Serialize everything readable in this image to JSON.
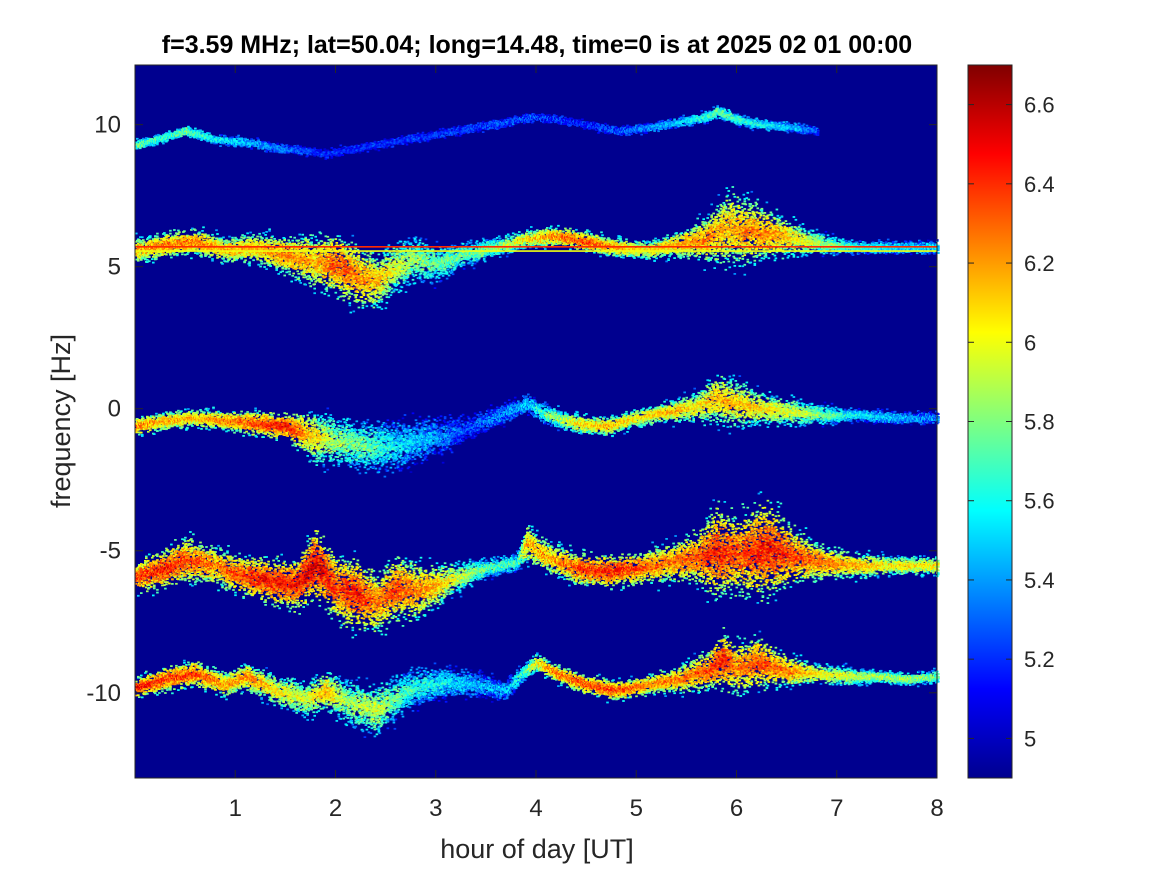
{
  "chart_data": {
    "type": "heatmap",
    "title": "f=3.59 MHz;  lat=50.04; long=14.48, time=0 is at 2025 02 01 00:00",
    "xlabel": "hour of day [UT]",
    "ylabel": "frequency [Hz]",
    "xlim": [
      0,
      8
    ],
    "ylim": [
      -13,
      12.1
    ],
    "xticks": [
      1,
      2,
      3,
      4,
      5,
      6,
      7,
      8
    ],
    "yticks": [
      10,
      5,
      0,
      -5,
      -10
    ],
    "colorbar": {
      "colormap": "jet",
      "clim": [
        4.9,
        6.7
      ],
      "ticks": [
        5,
        5.2,
        5.4,
        5.6,
        5.8,
        6,
        6.2,
        6.4,
        6.6
      ]
    },
    "background_color": "#00008f",
    "grid": false,
    "traces": [
      {
        "hours": [
          0,
          0.3,
          0.5,
          0.8,
          1.0,
          1.3,
          1.6,
          1.8,
          2.0,
          2.2,
          2.4,
          2.6,
          2.8,
          3.0,
          3.2,
          3.5,
          3.8,
          3.9,
          4.1,
          4.4,
          4.7,
          5.0,
          5.3,
          5.6,
          5.8,
          6.0,
          6.3,
          6.6,
          6.9,
          7.2,
          7.5,
          8.0
        ],
        "freqs": [
          -5.9,
          -5.6,
          -5.3,
          -5.5,
          -5.8,
          -6.0,
          -6.2,
          -5.4,
          -6.3,
          -6.5,
          -6.8,
          -6.3,
          -6.4,
          -6.2,
          -5.9,
          -5.6,
          -5.4,
          -4.7,
          -5.2,
          -5.6,
          -5.7,
          -5.6,
          -5.4,
          -5.2,
          -5.0,
          -5.1,
          -4.9,
          -5.2,
          -5.4,
          -5.5,
          -5.5,
          -5.5
        ],
        "intensity": [
          6.5,
          6.6,
          6.5,
          6.4,
          6.5,
          6.6,
          6.6,
          6.7,
          6.5,
          6.6,
          6.4,
          6.5,
          6.4,
          6.3,
          6.1,
          5.9,
          5.8,
          6.3,
          6.3,
          6.5,
          6.6,
          6.5,
          6.4,
          6.5,
          6.6,
          6.5,
          6.6,
          6.5,
          6.4,
          6.3,
          6.2,
          6.2
        ],
        "spread": [
          0.5,
          0.6,
          0.7,
          0.6,
          0.6,
          0.7,
          0.8,
          1.1,
          1.0,
          1.1,
          1.0,
          1.0,
          0.9,
          0.7,
          0.5,
          0.3,
          0.3,
          0.6,
          0.5,
          0.5,
          0.5,
          0.5,
          0.6,
          0.8,
          1.4,
          1.2,
          1.5,
          0.8,
          0.5,
          0.4,
          0.3,
          0.3
        ]
      },
      {
        "hours": [
          0,
          0.3,
          0.6,
          0.9,
          1.1,
          1.4,
          1.7,
          1.9,
          2.1,
          2.4,
          2.6,
          2.8,
          3.1,
          3.4,
          3.7,
          3.85,
          4.0,
          4.2,
          4.5,
          4.8,
          5.1,
          5.4,
          5.7,
          5.85,
          6.0,
          6.2,
          6.5,
          6.8,
          7.1,
          7.4,
          7.7,
          8.0
        ],
        "freqs": [
          -9.8,
          -9.5,
          -9.3,
          -9.7,
          -9.4,
          -9.9,
          -10.2,
          -9.9,
          -10.3,
          -10.6,
          -10.1,
          -9.8,
          -9.6,
          -9.7,
          -9.9,
          -9.3,
          -8.9,
          -9.3,
          -9.7,
          -9.9,
          -9.7,
          -9.5,
          -9.2,
          -8.8,
          -9.1,
          -8.9,
          -9.2,
          -9.3,
          -9.4,
          -9.4,
          -9.5,
          -9.4
        ],
        "intensity": [
          6.6,
          6.5,
          6.5,
          6.3,
          6.4,
          6.2,
          6.1,
          6.3,
          6.0,
          6.1,
          5.9,
          5.8,
          5.7,
          5.6,
          5.6,
          5.8,
          6.2,
          6.4,
          6.5,
          6.5,
          6.4,
          6.4,
          6.5,
          6.6,
          6.4,
          6.5,
          6.4,
          6.2,
          6.1,
          6.0,
          6.0,
          5.9
        ],
        "spread": [
          0.3,
          0.4,
          0.4,
          0.4,
          0.4,
          0.5,
          0.6,
          0.6,
          0.7,
          0.8,
          0.7,
          0.6,
          0.5,
          0.4,
          0.3,
          0.3,
          0.3,
          0.3,
          0.3,
          0.3,
          0.3,
          0.4,
          0.6,
          0.9,
          0.8,
          0.8,
          0.5,
          0.3,
          0.3,
          0.2,
          0.2,
          0.2
        ]
      },
      {
        "hours": [
          0,
          0.3,
          0.6,
          0.9,
          1.2,
          1.5,
          1.8,
          2.0,
          2.3,
          2.6,
          2.9,
          3.1,
          3.3,
          3.9,
          4.1,
          4.4,
          4.7,
          5.0,
          5.3,
          5.6,
          5.8,
          6.0,
          6.3,
          6.6,
          6.9,
          7.2,
          7.6,
          8.0
        ],
        "freqs": [
          -0.6,
          -0.4,
          -0.3,
          -0.4,
          -0.5,
          -0.6,
          -1.0,
          -1.1,
          -1.3,
          -1.3,
          -1.0,
          -0.9,
          -0.7,
          0.2,
          -0.2,
          -0.5,
          -0.6,
          -0.3,
          -0.1,
          0.1,
          0.4,
          0.2,
          0.0,
          -0.1,
          -0.2,
          -0.2,
          -0.3,
          -0.3
        ],
        "intensity": [
          6.4,
          6.3,
          6.3,
          6.4,
          6.5,
          6.6,
          6.2,
          6.0,
          5.9,
          5.7,
          5.6,
          5.5,
          5.4,
          5.6,
          5.9,
          6.2,
          6.3,
          6.2,
          6.3,
          6.2,
          6.3,
          6.3,
          6.2,
          6.1,
          5.9,
          5.7,
          5.6,
          5.5
        ],
        "spread": [
          0.3,
          0.3,
          0.3,
          0.3,
          0.4,
          0.4,
          0.8,
          0.8,
          0.8,
          0.8,
          0.7,
          0.6,
          0.4,
          0.3,
          0.3,
          0.3,
          0.3,
          0.3,
          0.3,
          0.5,
          0.8,
          0.7,
          0.5,
          0.4,
          0.3,
          0.2,
          0.2,
          0.2
        ]
      },
      {
        "hours": [
          0,
          0.3,
          0.6,
          0.9,
          1.2,
          1.5,
          1.8,
          2.0,
          2.2,
          2.4,
          2.6,
          2.8,
          3.0,
          3.3,
          3.6,
          3.9,
          4.2,
          4.5,
          4.8,
          5.1,
          5.4,
          5.7,
          5.9,
          6.1,
          6.3,
          6.6,
          6.9,
          7.2,
          7.6,
          8.0
        ],
        "freqs": [
          5.6,
          5.8,
          5.9,
          5.6,
          5.7,
          5.4,
          5.2,
          5.1,
          4.7,
          4.5,
          5.0,
          5.3,
          5.1,
          5.5,
          5.7,
          6.0,
          6.1,
          5.9,
          5.7,
          5.6,
          5.8,
          6.0,
          6.4,
          6.3,
          6.2,
          6.0,
          5.8,
          5.7,
          5.7,
          5.7
        ],
        "intensity": [
          6.3,
          6.4,
          6.4,
          6.3,
          6.3,
          6.4,
          6.3,
          6.5,
          6.4,
          6.3,
          6.1,
          6.0,
          5.9,
          5.9,
          6.0,
          6.2,
          6.4,
          6.5,
          6.3,
          6.2,
          6.3,
          6.4,
          6.3,
          6.4,
          6.4,
          6.2,
          6.0,
          5.8,
          5.7,
          5.7
        ],
        "spread": [
          0.4,
          0.4,
          0.4,
          0.4,
          0.5,
          0.6,
          0.9,
          0.9,
          1.0,
          0.9,
          0.8,
          0.7,
          0.6,
          0.4,
          0.3,
          0.3,
          0.3,
          0.3,
          0.3,
          0.3,
          0.4,
          0.7,
          1.2,
          1.0,
          0.8,
          0.5,
          0.3,
          0.2,
          0.2,
          0.2
        ]
      },
      {
        "hours": [
          0,
          0.3,
          0.5,
          0.8,
          1.1,
          1.4,
          1.7,
          1.9,
          4.0,
          4.4,
          4.8,
          5.1,
          5.4,
          5.7,
          5.8,
          6.0,
          6.3,
          6.6,
          6.8
        ],
        "freqs": [
          9.3,
          9.6,
          9.8,
          9.5,
          9.4,
          9.2,
          9.1,
          9.0,
          10.3,
          10.1,
          9.8,
          9.9,
          10.1,
          10.3,
          10.5,
          10.2,
          10.0,
          9.9,
          9.8
        ],
        "intensity": [
          5.9,
          5.8,
          5.9,
          5.7,
          5.6,
          5.5,
          5.4,
          5.3,
          5.4,
          5.3,
          5.4,
          5.5,
          5.6,
          5.8,
          5.9,
          5.8,
          5.7,
          5.6,
          5.4
        ],
        "spread": [
          0.15,
          0.15,
          0.15,
          0.15,
          0.15,
          0.15,
          0.15,
          0.15,
          0.15,
          0.15,
          0.15,
          0.15,
          0.15,
          0.2,
          0.2,
          0.2,
          0.15,
          0.15,
          0.15
        ]
      }
    ],
    "constant_lines": [
      {
        "freq": 5.55,
        "from_hour": 0,
        "to_hour": 8,
        "intensity": 6.0
      },
      {
        "freq": 5.7,
        "from_hour": 0,
        "to_hour": 8,
        "intensity": 6.4
      }
    ]
  }
}
